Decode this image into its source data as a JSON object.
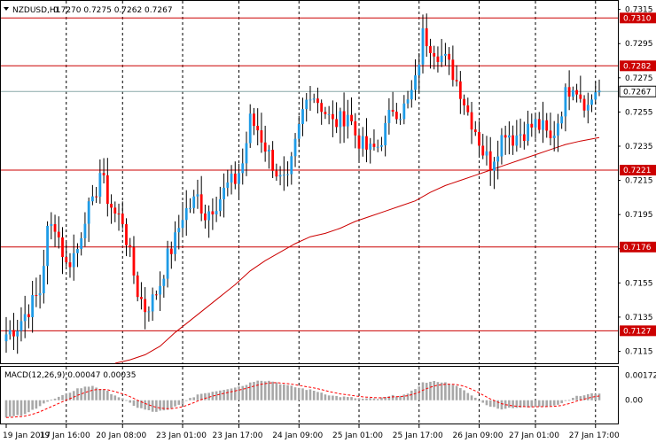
{
  "header": {
    "symbol": "NZDUSD,H1",
    "ohlc": "0.7270 0.7275 0.7262 0.7267"
  },
  "macd": {
    "label": "MACD(12,26,9) 0.00047 0.00035",
    "ticks": [
      "0.00172",
      "0.00"
    ],
    "min": -0.0016,
    "max": 0.0023
  },
  "colors": {
    "bull": "#1e9be6",
    "bear": "#ff0000",
    "level": "#cc0000",
    "ma": "#cc0000",
    "grid": "#000000",
    "macd_hist": "#a8a8a8",
    "macd_signal": "#ff0000"
  },
  "chart_data": {
    "type": "candlestick",
    "y_range": [
      0.7108,
      0.732
    ],
    "y_ticks": [
      "0.7315",
      "0.7295",
      "0.7275",
      "0.7255",
      "0.7235",
      "0.7215",
      "0.7195",
      "0.7175",
      "0.7155",
      "0.7135",
      "0.7115"
    ],
    "x_labels": [
      "19 Jan 2017",
      "19 Jan 16:00",
      "20 Jan 08:00",
      "23 Jan 01:00",
      "23 Jan 17:00",
      "24 Jan 09:00",
      "25 Jan 01:00",
      "25 Jan 17:00",
      "26 Jan 09:00",
      "27 Jan 01:00",
      "27 Jan 17:00"
    ],
    "levels": [
      {
        "value": 0.731,
        "label": "0.7310"
      },
      {
        "value": 0.7282,
        "label": "0.7282"
      },
      {
        "value": 0.7221,
        "label": "0.7221"
      },
      {
        "value": 0.7176,
        "label": "0.7176"
      },
      {
        "value": 0.7127,
        "label": "0.7127"
      }
    ],
    "current": {
      "value": 0.7267,
      "label": "0.7267"
    },
    "anchors": [
      [
        0,
        0.7125
      ],
      [
        3,
        0.713
      ],
      [
        6,
        0.714
      ],
      [
        9,
        0.715
      ],
      [
        11,
        0.7185
      ],
      [
        13,
        0.719
      ],
      [
        16,
        0.7165
      ],
      [
        19,
        0.7175
      ],
      [
        21,
        0.7195
      ],
      [
        23,
        0.72
      ],
      [
        25,
        0.722
      ],
      [
        27,
        0.7205
      ],
      [
        29,
        0.7195
      ],
      [
        31,
        0.7192
      ],
      [
        33,
        0.717
      ],
      [
        35,
        0.715
      ],
      [
        37,
        0.714
      ],
      [
        39,
        0.7145
      ],
      [
        41,
        0.7155
      ],
      [
        43,
        0.717
      ],
      [
        45,
        0.718
      ],
      [
        47,
        0.7195
      ],
      [
        49,
        0.72
      ],
      [
        51,
        0.7205
      ],
      [
        53,
        0.7195
      ],
      [
        55,
        0.72
      ],
      [
        57,
        0.7205
      ],
      [
        59,
        0.7212
      ],
      [
        61,
        0.7215
      ],
      [
        63,
        0.7225
      ],
      [
        65,
        0.725
      ],
      [
        67,
        0.7245
      ],
      [
        69,
        0.7235
      ],
      [
        71,
        0.7225
      ],
      [
        73,
        0.7215
      ],
      [
        75,
        0.7213
      ],
      [
        77,
        0.7235
      ],
      [
        79,
        0.7255
      ],
      [
        81,
        0.7268
      ],
      [
        83,
        0.7262
      ],
      [
        85,
        0.7255
      ],
      [
        87,
        0.7248
      ],
      [
        89,
        0.725
      ],
      [
        91,
        0.7255
      ],
      [
        93,
        0.7242
      ],
      [
        95,
        0.7235
      ],
      [
        97,
        0.7232
      ],
      [
        99,
        0.7235
      ],
      [
        101,
        0.7245
      ],
      [
        103,
        0.7258
      ],
      [
        105,
        0.7255
      ],
      [
        107,
        0.726
      ],
      [
        109,
        0.7272
      ],
      [
        111,
        0.73
      ],
      [
        113,
        0.7295
      ],
      [
        115,
        0.729
      ],
      [
        117,
        0.7285
      ],
      [
        119,
        0.7278
      ],
      [
        121,
        0.7268
      ],
      [
        123,
        0.7255
      ],
      [
        125,
        0.7245
      ],
      [
        127,
        0.7232
      ],
      [
        129,
        0.7225
      ],
      [
        131,
        0.7235
      ],
      [
        133,
        0.7245
      ],
      [
        135,
        0.724
      ],
      [
        137,
        0.7243
      ],
      [
        139,
        0.7245
      ],
      [
        141,
        0.7248
      ],
      [
        143,
        0.7245
      ],
      [
        145,
        0.7238
      ],
      [
        147,
        0.725
      ],
      [
        149,
        0.7265
      ],
      [
        151,
        0.7273
      ],
      [
        153,
        0.7265
      ],
      [
        155,
        0.7258
      ],
      [
        157,
        0.7268
      ],
      [
        158,
        0.7267
      ]
    ],
    "ma": [
      [
        29,
        0.7108
      ],
      [
        33,
        0.711
      ],
      [
        37,
        0.7113
      ],
      [
        41,
        0.7118
      ],
      [
        45,
        0.7126
      ],
      [
        49,
        0.7133
      ],
      [
        53,
        0.714
      ],
      [
        57,
        0.7147
      ],
      [
        61,
        0.7154
      ],
      [
        65,
        0.7162
      ],
      [
        69,
        0.7168
      ],
      [
        73,
        0.7173
      ],
      [
        77,
        0.7178
      ],
      [
        81,
        0.7182
      ],
      [
        85,
        0.7184
      ],
      [
        89,
        0.7187
      ],
      [
        93,
        0.7191
      ],
      [
        97,
        0.7194
      ],
      [
        101,
        0.7197
      ],
      [
        105,
        0.72
      ],
      [
        109,
        0.7203
      ],
      [
        113,
        0.7208
      ],
      [
        117,
        0.7212
      ],
      [
        121,
        0.7215
      ],
      [
        125,
        0.7218
      ],
      [
        129,
        0.7221
      ],
      [
        133,
        0.7224
      ],
      [
        137,
        0.7227
      ],
      [
        141,
        0.723
      ],
      [
        145,
        0.7233
      ],
      [
        149,
        0.7236
      ],
      [
        153,
        0.7238
      ],
      [
        158,
        0.724
      ]
    ],
    "macd_anchors": [
      [
        0,
        -0.0012
      ],
      [
        5,
        -0.001
      ],
      [
        10,
        -0.0002
      ],
      [
        15,
        0.0003
      ],
      [
        19,
        0.0008
      ],
      [
        23,
        0.001
      ],
      [
        27,
        0.0006
      ],
      [
        31,
        0.0001
      ],
      [
        35,
        -0.0005
      ],
      [
        39,
        -0.0008
      ],
      [
        43,
        -0.0007
      ],
      [
        47,
        -0.0002
      ],
      [
        51,
        0.0004
      ],
      [
        55,
        0.0006
      ],
      [
        59,
        0.0008
      ],
      [
        63,
        0.001
      ],
      [
        67,
        0.0014
      ],
      [
        71,
        0.0013
      ],
      [
        75,
        0.001
      ],
      [
        79,
        0.0008
      ],
      [
        83,
        0.0006
      ],
      [
        87,
        0.0003
      ],
      [
        91,
        0.0002
      ],
      [
        95,
        0.0001
      ],
      [
        99,
        0.0001
      ],
      [
        103,
        0.0003
      ],
      [
        107,
        0.0004
      ],
      [
        111,
        0.0012
      ],
      [
        115,
        0.0013
      ],
      [
        119,
        0.0011
      ],
      [
        123,
        0.0005
      ],
      [
        127,
        -0.0002
      ],
      [
        131,
        -0.0006
      ],
      [
        135,
        -0.0005
      ],
      [
        139,
        -0.0005
      ],
      [
        143,
        -0.0004
      ],
      [
        147,
        -0.0003
      ],
      [
        151,
        0.0002
      ],
      [
        155,
        0.0004
      ],
      [
        158,
        0.0005
      ]
    ],
    "n_bars": 159
  }
}
